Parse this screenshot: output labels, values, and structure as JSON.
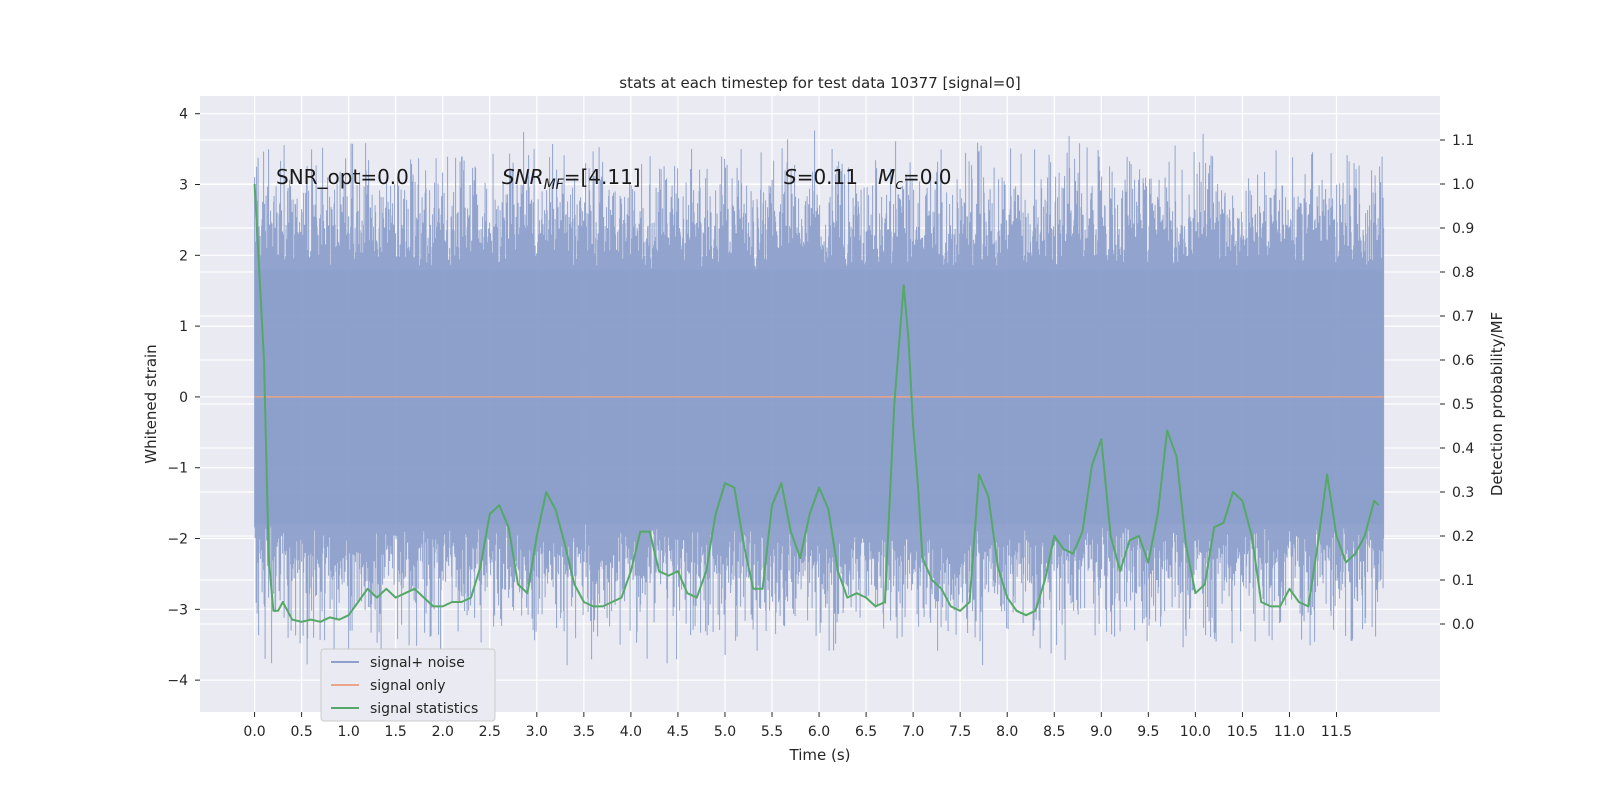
{
  "chart_data": {
    "type": "line",
    "title": "stats at each timestep for test data 10377 [signal=0]",
    "xlabel": "Time (s)",
    "ylabel_left": "Whitened strain",
    "ylabel_right": "Detection probability/MF",
    "xlim": [
      -0.58,
      12.6
    ],
    "ylim_left": [
      -4.45,
      4.25
    ],
    "ylim_right": [
      -0.2,
      1.2
    ],
    "x_ticks": [
      "0.0",
      "0.5",
      "1.0",
      "1.5",
      "2.0",
      "2.5",
      "3.0",
      "3.5",
      "4.0",
      "4.5",
      "5.0",
      "5.5",
      "6.0",
      "6.5",
      "7.0",
      "7.5",
      "8.0",
      "8.5",
      "9.0",
      "9.5",
      "10.0",
      "10.5",
      "11.0",
      "11.5"
    ],
    "y_ticks_left": [
      "4",
      "3",
      "2",
      "1",
      "0",
      "−1",
      "−2",
      "−3",
      "−4"
    ],
    "y_ticks_right": [
      "1.1",
      "1.0",
      "0.9",
      "0.8",
      "0.7",
      "0.6",
      "0.5",
      "0.4",
      "0.3",
      "0.2",
      "0.1",
      "0.0"
    ],
    "grid": true,
    "legend_position": "lower-left",
    "annotations": [
      {
        "text": "SNR_opt=0.0"
      },
      {
        "text": "SNR_MF=[4.11]",
        "main": "SNR",
        "sub": "MF",
        "rest": "=[4.11]"
      },
      {
        "text": "S=0.11",
        "main": "S",
        "rest": "=0.11"
      },
      {
        "text": "M_c=0.0",
        "main": "M",
        "sub": "c",
        "rest": "=0.0"
      }
    ],
    "series": [
      {
        "name": "signal+ noise",
        "axis": "left",
        "color": "#8da0cb",
        "x_range": [
          0.0,
          12.0
        ],
        "band_low": -1.8,
        "band_high": 1.8,
        "envelope_high": 3.2,
        "envelope_low": -3.3
      },
      {
        "name": "signal only",
        "axis": "left",
        "color": "#e8a58a",
        "x": [
          0.0,
          12.0
        ],
        "y": [
          0.0,
          0.0
        ]
      },
      {
        "name": "signal statistics",
        "axis": "right",
        "color": "#55a868",
        "x": [
          0.0,
          0.1,
          0.15,
          0.2,
          0.25,
          0.3,
          0.35,
          0.4,
          0.5,
          0.6,
          0.7,
          0.8,
          0.9,
          1.0,
          1.1,
          1.2,
          1.3,
          1.4,
          1.5,
          1.6,
          1.7,
          1.8,
          1.9,
          2.0,
          2.1,
          2.2,
          2.3,
          2.4,
          2.5,
          2.6,
          2.7,
          2.8,
          2.9,
          3.0,
          3.1,
          3.2,
          3.3,
          3.4,
          3.5,
          3.6,
          3.7,
          3.8,
          3.9,
          4.0,
          4.1,
          4.2,
          4.3,
          4.4,
          4.5,
          4.6,
          4.7,
          4.8,
          4.9,
          5.0,
          5.1,
          5.2,
          5.3,
          5.4,
          5.5,
          5.6,
          5.7,
          5.8,
          5.9,
          6.0,
          6.1,
          6.2,
          6.3,
          6.4,
          6.5,
          6.6,
          6.7,
          6.8,
          6.9,
          6.95,
          7.0,
          7.05,
          7.1,
          7.2,
          7.3,
          7.4,
          7.5,
          7.6,
          7.7,
          7.8,
          7.9,
          8.0,
          8.1,
          8.2,
          8.3,
          8.4,
          8.5,
          8.6,
          8.7,
          8.8,
          8.9,
          9.0,
          9.1,
          9.2,
          9.3,
          9.4,
          9.5,
          9.6,
          9.7,
          9.8,
          9.9,
          10.0,
          10.1,
          10.2,
          10.3,
          10.4,
          10.5,
          10.6,
          10.7,
          10.8,
          10.9,
          11.0,
          11.1,
          11.2,
          11.3,
          11.4,
          11.5,
          11.6,
          11.7,
          11.8,
          11.9,
          11.95
        ],
        "y": [
          1.0,
          0.6,
          0.15,
          0.03,
          0.03,
          0.05,
          0.03,
          0.01,
          0.005,
          0.01,
          0.005,
          0.015,
          0.01,
          0.02,
          0.05,
          0.08,
          0.06,
          0.08,
          0.06,
          0.07,
          0.08,
          0.06,
          0.04,
          0.04,
          0.05,
          0.05,
          0.06,
          0.13,
          0.25,
          0.27,
          0.22,
          0.09,
          0.07,
          0.2,
          0.3,
          0.26,
          0.18,
          0.09,
          0.05,
          0.04,
          0.04,
          0.05,
          0.06,
          0.12,
          0.21,
          0.21,
          0.12,
          0.11,
          0.12,
          0.07,
          0.06,
          0.12,
          0.25,
          0.32,
          0.31,
          0.18,
          0.08,
          0.08,
          0.27,
          0.32,
          0.21,
          0.15,
          0.25,
          0.31,
          0.26,
          0.12,
          0.06,
          0.07,
          0.06,
          0.04,
          0.05,
          0.5,
          0.77,
          0.65,
          0.45,
          0.32,
          0.15,
          0.1,
          0.08,
          0.04,
          0.03,
          0.05,
          0.34,
          0.29,
          0.13,
          0.06,
          0.03,
          0.02,
          0.03,
          0.1,
          0.2,
          0.17,
          0.16,
          0.21,
          0.36,
          0.42,
          0.2,
          0.12,
          0.19,
          0.2,
          0.14,
          0.25,
          0.44,
          0.38,
          0.18,
          0.07,
          0.09,
          0.22,
          0.23,
          0.3,
          0.28,
          0.2,
          0.05,
          0.04,
          0.04,
          0.08,
          0.05,
          0.04,
          0.18,
          0.34,
          0.2,
          0.14,
          0.16,
          0.2,
          0.28,
          0.27
        ]
      }
    ]
  }
}
